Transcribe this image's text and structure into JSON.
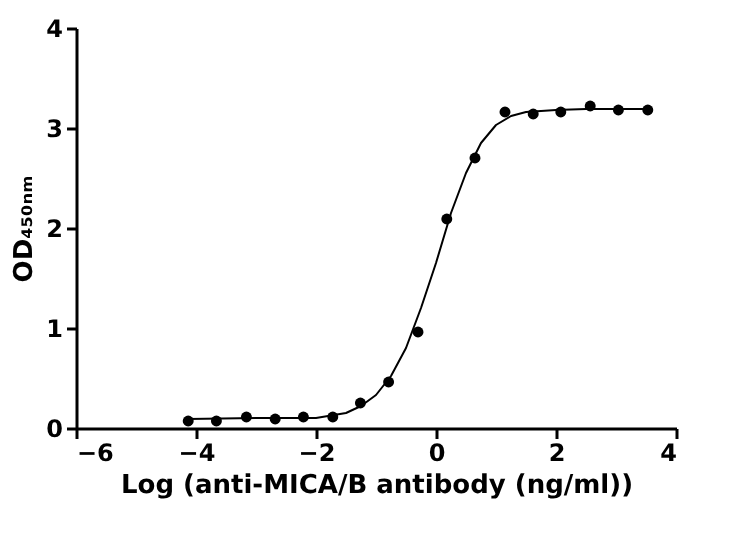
{
  "chart_data": {
    "type": "scatter",
    "xlabel": "Log (anti-MICA/B antibody (ng/ml))",
    "ylabel": "OD₄₅₀ₙₘ",
    "xlim": [
      -6,
      4
    ],
    "xticks": [
      -6,
      -4,
      -2,
      0,
      2,
      4
    ],
    "ylim": [
      0,
      4
    ],
    "yticks": [
      0,
      1,
      2,
      3,
      4
    ],
    "grid": false,
    "series": [
      {
        "color": "#000000",
        "marker": "circle",
        "x": [
          -4.13,
          -3.66,
          -3.16,
          -2.68,
          -2.21,
          -1.72,
          -1.26,
          -0.79,
          -0.3,
          0.18,
          0.65,
          1.15,
          1.62,
          2.08,
          2.57,
          3.04,
          3.53
        ],
        "values": [
          0.07,
          0.07,
          0.11,
          0.09,
          0.11,
          0.11,
          0.25,
          0.46,
          0.96,
          2.09,
          2.7,
          3.16,
          3.14,
          3.16,
          3.22,
          3.18,
          3.18
        ]
      },
      {
        "type": "line",
        "color": "#000000",
        "line_style": "solid",
        "x": [
          -4.13,
          -3,
          -2,
          -1.5,
          -1.25,
          -1,
          -0.75,
          -0.5,
          -0.25,
          0,
          0.25,
          0.5,
          0.75,
          1,
          1.25,
          1.5,
          2,
          2.5,
          3,
          3.53
        ],
        "values": [
          0.09,
          0.1,
          0.1,
          0.15,
          0.22,
          0.33,
          0.52,
          0.8,
          1.2,
          1.65,
          2.15,
          2.55,
          2.85,
          3.03,
          3.12,
          3.16,
          3.18,
          3.19,
          3.19,
          3.19
        ]
      }
    ]
  }
}
